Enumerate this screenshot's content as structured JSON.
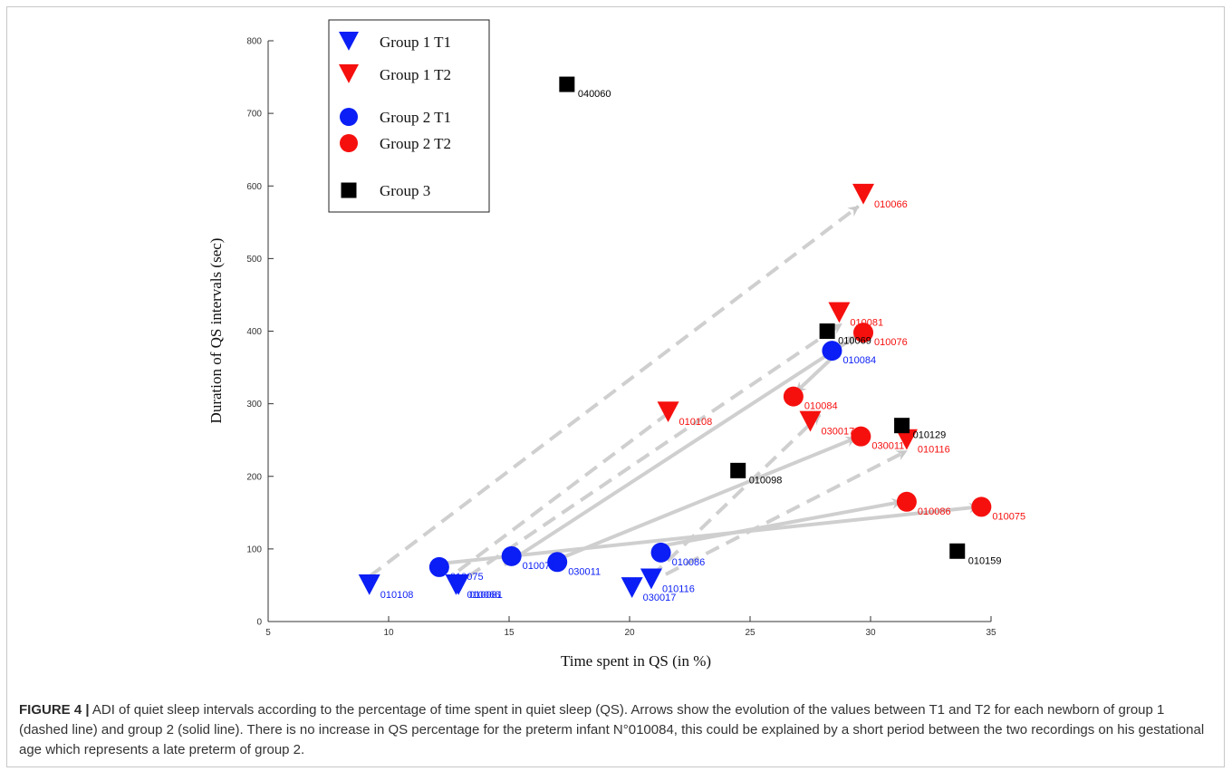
{
  "figure": {
    "caption_lead": "FIGURE 4 |",
    "caption_text": " ADI of quiet sleep intervals according to the percentage of time spent in quiet sleep (QS). Arrows show the evolution of the values between T1 and T2 for each newborn of group 1 (dashed line) and group 2 (solid line). There is no increase in QS percentage for the preterm infant N°010084, this could be explained by a short period between the two recordings on his gestational age which represents a late preterm of group 2."
  },
  "chart_data": {
    "type": "scatter",
    "title": "",
    "xlabel": "Time spent in QS (in %)",
    "ylabel": "Duration of QS intervals (sec)",
    "xlim": [
      5,
      35
    ],
    "ylim": [
      0,
      800
    ],
    "xticks": [
      5,
      10,
      15,
      20,
      25,
      30,
      35
    ],
    "yticks": [
      0,
      100,
      200,
      300,
      400,
      500,
      600,
      700,
      800
    ],
    "grid": false,
    "legend_position": "top-left",
    "colors": {
      "blue": "#0a1ef5",
      "red": "#f5100e",
      "black": "#000000",
      "arrow": "#cfcfcf",
      "arrow_light": "#e2e2e2"
    },
    "legend": [
      {
        "label": "Group 1 T1",
        "marker": "triangle-down",
        "color": "#0a1ef5"
      },
      {
        "label": "Group 1 T2",
        "marker": "triangle-down",
        "color": "#f5100e"
      },
      {
        "label": "Group 2 T1",
        "marker": "circle",
        "color": "#0a1ef5"
      },
      {
        "label": "Group 2 T2",
        "marker": "circle",
        "color": "#f5100e"
      },
      {
        "label": "Group 3",
        "marker": "square",
        "color": "#000000"
      }
    ],
    "series": [
      {
        "name": "Group 1 T1",
        "marker": "triangle-down",
        "color": "#0a1ef5",
        "points": [
          {
            "id": "010108",
            "x": 9.2,
            "y": 50
          },
          {
            "id": "010066",
            "x": 12.8,
            "y": 50
          },
          {
            "id": "010081",
            "x": 12.9,
            "y": 50
          },
          {
            "id": "030017",
            "x": 20.1,
            "y": 46
          },
          {
            "id": "010116",
            "x": 20.9,
            "y": 58
          }
        ]
      },
      {
        "name": "Group 1 T2",
        "marker": "triangle-down",
        "color": "#f5100e",
        "points": [
          {
            "id": "010066",
            "x": 29.7,
            "y": 588
          },
          {
            "id": "010081",
            "x": 28.7,
            "y": 425
          },
          {
            "id": "010108",
            "x": 21.6,
            "y": 288
          },
          {
            "id": "030017",
            "x": 27.5,
            "y": 275
          },
          {
            "id": "010116",
            "x": 31.5,
            "y": 250
          }
        ]
      },
      {
        "name": "Group 2 T1",
        "marker": "circle",
        "color": "#0a1ef5",
        "points": [
          {
            "id": "010075",
            "x": 12.1,
            "y": 75
          },
          {
            "id": "010076",
            "x": 15.1,
            "y": 90
          },
          {
            "id": "030011",
            "x": 17.0,
            "y": 82
          },
          {
            "id": "010086",
            "x": 21.3,
            "y": 95
          },
          {
            "id": "010084",
            "x": 28.4,
            "y": 373
          }
        ]
      },
      {
        "name": "Group 2 T2",
        "marker": "circle",
        "color": "#f5100e",
        "points": [
          {
            "id": "010076",
            "x": 29.7,
            "y": 398
          },
          {
            "id": "010084",
            "x": 26.8,
            "y": 310
          },
          {
            "id": "030011",
            "x": 29.6,
            "y": 255
          },
          {
            "id": "010086",
            "x": 31.5,
            "y": 165
          },
          {
            "id": "010075",
            "x": 34.6,
            "y": 158
          }
        ]
      },
      {
        "name": "Group 3",
        "marker": "square",
        "color": "#000000",
        "points": [
          {
            "id": "040060",
            "x": 17.4,
            "y": 740
          },
          {
            "id": "010069",
            "x": 28.2,
            "y": 400
          },
          {
            "id": "010129",
            "x": 31.3,
            "y": 270
          },
          {
            "id": "010098",
            "x": 24.5,
            "y": 208
          },
          {
            "id": "010159",
            "x": 33.6,
            "y": 97
          }
        ]
      }
    ],
    "arrows": [
      {
        "group": "Group 1",
        "style": "dashed",
        "from": [
          9.2,
          62
        ],
        "to": [
          29.5,
          572
        ]
      },
      {
        "group": "Group 1",
        "style": "dashed",
        "from": [
          13.3,
          62
        ],
        "to": [
          28.8,
          410
        ]
      },
      {
        "group": "Group 1",
        "style": "dashed",
        "from": [
          12.9,
          70
        ],
        "to": [
          21.8,
          292
        ]
      },
      {
        "group": "Group 1",
        "style": "dashed",
        "from": [
          20.9,
          62
        ],
        "to": [
          27.9,
          285
        ]
      },
      {
        "group": "Group 1",
        "style": "dashed",
        "from": [
          21.5,
          65
        ],
        "to": [
          31.5,
          235
        ]
      },
      {
        "group": "Group 2",
        "style": "solid",
        "from": [
          14.8,
          78
        ],
        "to": [
          29.4,
          393
        ]
      },
      {
        "group": "Group 2",
        "style": "solid",
        "from": [
          12.2,
          80
        ],
        "to": [
          34.5,
          158
        ]
      },
      {
        "group": "Group 2",
        "style": "solid",
        "from": [
          21.3,
          104
        ],
        "to": [
          31.3,
          165
        ]
      },
      {
        "group": "Group 2",
        "style": "solid",
        "from": [
          17.2,
          88
        ],
        "to": [
          29.4,
          253
        ]
      },
      {
        "group": "Group 2",
        "style": "solid",
        "from": [
          28.5,
          366
        ],
        "to": [
          26.9,
          316
        ]
      }
    ],
    "point_labels": [
      {
        "text": "010108",
        "color": "#0a1ef5",
        "x": 9.2,
        "y": 50
      },
      {
        "text": "010066",
        "color": "#0a1ef5",
        "x": 12.8,
        "y": 50
      },
      {
        "text": "010081",
        "color": "#0a1ef5",
        "x": 12.9,
        "y": 50
      },
      {
        "text": "030017",
        "color": "#0a1ef5",
        "x": 20.1,
        "y": 46
      },
      {
        "text": "010116",
        "color": "#0a1ef5",
        "x": 20.9,
        "y": 58
      },
      {
        "text": "010075",
        "color": "#0a1ef5",
        "x": 12.1,
        "y": 75
      },
      {
        "text": "010076",
        "color": "#0a1ef5",
        "x": 15.1,
        "y": 90
      },
      {
        "text": "030011",
        "color": "#0a1ef5",
        "x": 17.0,
        "y": 82
      },
      {
        "text": "010086",
        "color": "#0a1ef5",
        "x": 21.3,
        "y": 95
      },
      {
        "text": "010084",
        "color": "#0a1ef5",
        "x": 28.4,
        "y": 373
      },
      {
        "text": "010066",
        "color": "#f5100e",
        "x": 29.7,
        "y": 588
      },
      {
        "text": "010081",
        "color": "#f5100e",
        "x": 28.7,
        "y": 425
      },
      {
        "text": "010076",
        "color": "#f5100e",
        "x": 29.7,
        "y": 398
      },
      {
        "text": "010084",
        "color": "#f5100e",
        "x": 26.8,
        "y": 310
      },
      {
        "text": "010108",
        "color": "#f5100e",
        "x": 21.6,
        "y": 288
      },
      {
        "text": "030017",
        "color": "#f5100e",
        "x": 27.5,
        "y": 275
      },
      {
        "text": "030011",
        "color": "#f5100e",
        "x": 29.6,
        "y": 255
      },
      {
        "text": "010116",
        "color": "#f5100e",
        "x": 31.5,
        "y": 250
      },
      {
        "text": "010086",
        "color": "#f5100e",
        "x": 31.5,
        "y": 165
      },
      {
        "text": "010075",
        "color": "#f5100e",
        "x": 34.6,
        "y": 158
      },
      {
        "text": "040060",
        "color": "#000000",
        "x": 17.4,
        "y": 740
      },
      {
        "text": "010069",
        "color": "#000000",
        "x": 28.2,
        "y": 400
      },
      {
        "text": "010129",
        "color": "#000000",
        "x": 31.3,
        "y": 270
      },
      {
        "text": "010098",
        "color": "#000000",
        "x": 24.5,
        "y": 208
      },
      {
        "text": "010159",
        "color": "#000000",
        "x": 33.6,
        "y": 97
      }
    ]
  }
}
